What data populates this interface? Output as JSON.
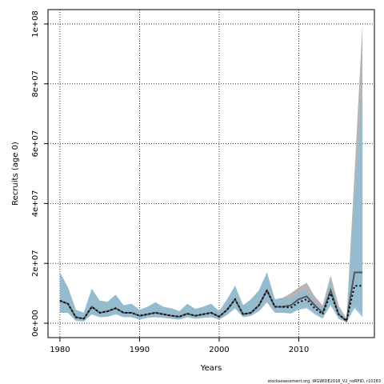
{
  "chart_data": {
    "type": "band-line",
    "x_label": "Years",
    "y_label": "Recruits (age 0)",
    "footer": "stockassessment.org, WGWIDE2018_V2_noRFID, r10283",
    "xlim": [
      1978.5,
      2019.5
    ],
    "xticks": [
      1980,
      1990,
      2000,
      2010
    ],
    "ylim": [
      -4800000.0,
      104800000.0
    ],
    "yticks": [
      {
        "value": 0,
        "label": "0e+00"
      },
      {
        "value": 20000000.0,
        "label": "2e+07"
      },
      {
        "value": 40000000.0,
        "label": "4e+07"
      },
      {
        "value": 60000000.0,
        "label": "6e+07"
      },
      {
        "value": 80000000.0,
        "label": "8e+07"
      },
      {
        "value": 100000000.0,
        "label": "1e+08"
      }
    ],
    "grid": true,
    "x": [
      1980,
      1981,
      1982,
      1983,
      1984,
      1985,
      1986,
      1987,
      1988,
      1989,
      1990,
      1991,
      1992,
      1993,
      1994,
      1995,
      1996,
      1997,
      1998,
      1999,
      2000,
      2001,
      2002,
      2003,
      2004,
      2005,
      2006,
      2007,
      2008,
      2009,
      2010,
      2011,
      2012,
      2013,
      2014,
      2015,
      2016,
      2017,
      2018
    ],
    "series": [
      {
        "color": "#555555",
        "band_color": "#a8a8a8",
        "dash": false,
        "values": [
          7500000.0,
          6500000.0,
          2000000.0,
          1500000.0,
          5500000.0,
          3500000.0,
          4000000.0,
          5000000.0,
          3500000.0,
          3500000.0,
          2500000.0,
          3000000.0,
          3500000.0,
          3000000.0,
          2500000.0,
          2200000.0,
          3200000.0,
          2500000.0,
          3000000.0,
          3500000.0,
          2200000.0,
          4500000.0,
          8000000.0,
          3000000.0,
          3500000.0,
          6000000.0,
          11000000.0,
          5500000.0,
          5500000.0,
          6000000.0,
          8000000.0,
          9000000.0,
          6000000.0,
          3500000.0,
          11000000.0,
          3000000.0,
          800000.0,
          17000000.0,
          17000000.0
        ],
        "upper": [
          17000000.0,
          12000000.0,
          4500000.0,
          3500000.0,
          11500000.0,
          7500000.0,
          7200000.0,
          9500000.0,
          6000000.0,
          6500000.0,
          4500000.0,
          5500000.0,
          7000000.0,
          5500000.0,
          5000000.0,
          4000000.0,
          6500000.0,
          4800000.0,
          5500000.0,
          6500000.0,
          4000000.0,
          8000000.0,
          12500000.0,
          6000000.0,
          8000000.0,
          11000000.0,
          17000000.0,
          8000000.0,
          8500000.0,
          10000000.0,
          12000000.0,
          13500000.0,
          9000000.0,
          6000000.0,
          16000000.0,
          6000000.0,
          1500000.0,
          50000000.0,
          100000000.0
        ],
        "lower": [
          3500000.0,
          3500000.0,
          800000.0,
          600000.0,
          3000000.0,
          2000000.0,
          2200000.0,
          3000000.0,
          2000000.0,
          2000000.0,
          1200000.0,
          1800000.0,
          2000000.0,
          1800000.0,
          1500000.0,
          1200000.0,
          2000000.0,
          1500000.0,
          1800000.0,
          2000000.0,
          1200000.0,
          2800000.0,
          5000000.0,
          2000000.0,
          2500000.0,
          4000000.0,
          7000000.0,
          3500000.0,
          3500000.0,
          3500000.0,
          5000000.0,
          5500000.0,
          3500000.0,
          1800000.0,
          6500000.0,
          1500000.0,
          300000.0,
          6000000.0,
          3000000.0
        ]
      },
      {
        "color": "#000000",
        "band_color": "#8fbcd4",
        "dash": true,
        "values": [
          7500000.0,
          6500000.0,
          2000000.0,
          1500000.0,
          5500000.0,
          3500000.0,
          4000000.0,
          5000000.0,
          3500000.0,
          3500000.0,
          2500000.0,
          3000000.0,
          3500000.0,
          3000000.0,
          2500000.0,
          2200000.0,
          3200000.0,
          2500000.0,
          3000000.0,
          3500000.0,
          2200000.0,
          4500000.0,
          8000000.0,
          3000000.0,
          3500000.0,
          6000000.0,
          11000000.0,
          5500000.0,
          5500000.0,
          5200000.0,
          7000000.0,
          8000000.0,
          5000000.0,
          3000000.0,
          10000000.0,
          3000000.0,
          800000.0,
          12500000.0,
          12500000.0
        ],
        "upper": [
          17000000.0,
          12000000.0,
          4500000.0,
          3500000.0,
          11500000.0,
          7500000.0,
          7200000.0,
          9500000.0,
          6000000.0,
          6500000.0,
          4500000.0,
          5500000.0,
          7000000.0,
          5500000.0,
          5000000.0,
          4000000.0,
          6500000.0,
          4800000.0,
          5500000.0,
          6500000.0,
          4000000.0,
          8000000.0,
          12500000.0,
          6000000.0,
          8000000.0,
          11000000.0,
          17000000.0,
          8000000.0,
          8500000.0,
          8000000.0,
          10000000.0,
          11000000.0,
          7000000.0,
          5000000.0,
          14000000.0,
          5000000.0,
          1500000.0,
          40000000.0,
          75000000.0
        ],
        "lower": [
          3500000.0,
          3500000.0,
          800000.0,
          600000.0,
          3000000.0,
          2000000.0,
          2200000.0,
          3000000.0,
          2000000.0,
          2000000.0,
          1200000.0,
          1800000.0,
          2000000.0,
          1800000.0,
          1500000.0,
          1200000.0,
          2000000.0,
          1500000.0,
          1800000.0,
          2000000.0,
          1200000.0,
          2800000.0,
          5000000.0,
          2000000.0,
          2500000.0,
          4000000.0,
          7000000.0,
          3500000.0,
          3500000.0,
          3200000.0,
          4500000.0,
          5000000.0,
          3000000.0,
          1500000.0,
          6000000.0,
          1500000.0,
          300000.0,
          5000000.0,
          2000000.0
        ]
      }
    ]
  }
}
